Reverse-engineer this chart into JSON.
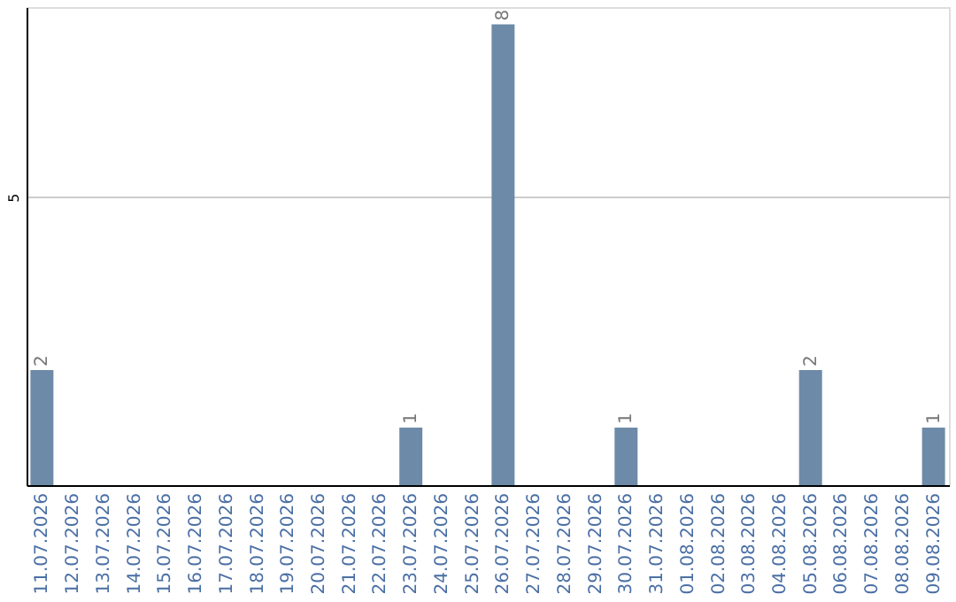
{
  "chart_data": {
    "type": "bar",
    "categories": [
      "11.07.2026",
      "12.07.2026",
      "13.07.2026",
      "14.07.2026",
      "15.07.2026",
      "16.07.2026",
      "17.07.2026",
      "18.07.2026",
      "19.07.2026",
      "20.07.2026",
      "21.07.2026",
      "22.07.2026",
      "23.07.2026",
      "24.07.2026",
      "25.07.2026",
      "26.07.2026",
      "27.07.2026",
      "28.07.2026",
      "29.07.2026",
      "30.07.2026",
      "31.07.2026",
      "01.08.2026",
      "02.08.2026",
      "03.08.2026",
      "04.08.2026",
      "05.08.2026",
      "06.08.2026",
      "07.08.2026",
      "08.08.2026",
      "09.08.2026"
    ],
    "values": [
      2,
      0,
      0,
      0,
      0,
      0,
      0,
      0,
      0,
      0,
      0,
      0,
      1,
      0,
      0,
      8,
      0,
      0,
      0,
      1,
      0,
      0,
      0,
      0,
      0,
      2,
      0,
      0,
      0,
      1
    ],
    "value_labels": [
      "2",
      null,
      null,
      null,
      null,
      null,
      null,
      null,
      null,
      null,
      null,
      null,
      "1",
      null,
      null,
      "8",
      null,
      null,
      null,
      "1",
      null,
      null,
      null,
      null,
      null,
      "2",
      null,
      null,
      null,
      "1"
    ],
    "color": "#6d8ba8",
    "ylim": [
      0,
      8.3
    ],
    "yticks": [
      5
    ],
    "grid": "y"
  }
}
